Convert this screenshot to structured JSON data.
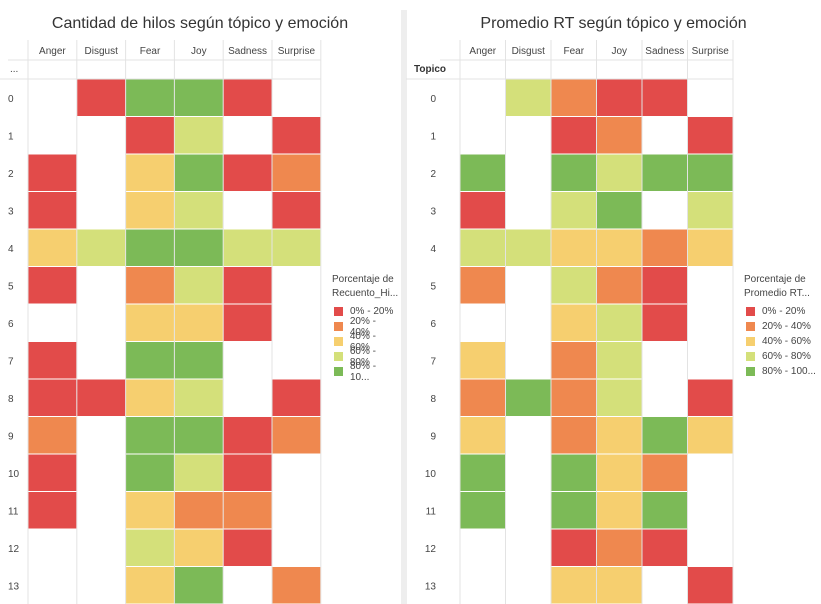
{
  "colors": {
    "0% - 20%": "#e24b4a",
    "20% - 40%": "#ef884f",
    "40% - 60%": "#f6cf6f",
    "60% - 80%": "#d4e07a",
    "80% - 100%": "#7cba57"
  },
  "chart_data": [
    {
      "type": "heatmap",
      "title": "Cantidad de hilos según tópico y emoción",
      "row_header": "...",
      "columns": [
        "Anger",
        "Disgust",
        "Fear",
        "Joy",
        "Sadness",
        "Surprise"
      ],
      "rows": [
        "0",
        "1",
        "2",
        "3",
        "4",
        "5",
        "6",
        "7",
        "8",
        "9",
        "10",
        "11",
        "12",
        "13"
      ],
      "legend_title": "Porcentaje de Recuento_Hi...",
      "legend": [
        "0% - 20%",
        "20% - 40%",
        "40% - 60%",
        "60% - 80%",
        "80% - 10..."
      ],
      "bins": [
        "0% - 20%",
        "20% - 40%",
        "40% - 60%",
        "60% - 80%",
        "80% - 100%"
      ],
      "cells": [
        [
          null,
          0,
          4,
          4,
          0,
          null
        ],
        [
          null,
          null,
          0,
          3,
          null,
          0
        ],
        [
          0,
          null,
          2,
          4,
          0,
          1
        ],
        [
          0,
          null,
          2,
          3,
          null,
          0
        ],
        [
          2,
          3,
          4,
          4,
          3,
          3
        ],
        [
          0,
          null,
          1,
          3,
          0,
          null
        ],
        [
          null,
          null,
          2,
          2,
          0,
          null
        ],
        [
          0,
          null,
          4,
          4,
          null,
          null
        ],
        [
          0,
          0,
          2,
          3,
          null,
          0
        ],
        [
          1,
          null,
          4,
          4,
          0,
          1
        ],
        [
          0,
          null,
          4,
          3,
          0,
          null
        ],
        [
          0,
          null,
          2,
          1,
          1,
          null
        ],
        [
          null,
          null,
          3,
          2,
          0,
          null
        ],
        [
          null,
          null,
          2,
          4,
          null,
          1
        ]
      ]
    },
    {
      "type": "heatmap",
      "title": "Promedio RT según tópico y emoción",
      "row_header": "Topico",
      "columns": [
        "Anger",
        "Disgust",
        "Fear",
        "Joy",
        "Sadness",
        "Surprise"
      ],
      "rows": [
        "0",
        "1",
        "2",
        "3",
        "4",
        "5",
        "6",
        "7",
        "8",
        "9",
        "10",
        "11",
        "12",
        "13"
      ],
      "legend_title": "Porcentaje de Promedio RT...",
      "legend": [
        "0% - 20%",
        "20% - 40%",
        "40% - 60%",
        "60% - 80%",
        "80% - 100..."
      ],
      "bins": [
        "0% - 20%",
        "20% - 40%",
        "40% - 60%",
        "60% - 80%",
        "80% - 100%"
      ],
      "cells": [
        [
          null,
          3,
          1,
          0,
          0,
          null
        ],
        [
          null,
          null,
          0,
          1,
          null,
          0
        ],
        [
          4,
          null,
          4,
          3,
          4,
          4
        ],
        [
          0,
          null,
          3,
          4,
          null,
          3
        ],
        [
          3,
          3,
          2,
          2,
          1,
          2
        ],
        [
          1,
          null,
          3,
          1,
          0,
          null
        ],
        [
          null,
          null,
          2,
          3,
          0,
          null
        ],
        [
          2,
          null,
          1,
          3,
          null,
          null
        ],
        [
          1,
          4,
          1,
          3,
          null,
          0
        ],
        [
          2,
          null,
          1,
          2,
          4,
          2
        ],
        [
          4,
          null,
          4,
          2,
          1,
          null
        ],
        [
          4,
          null,
          4,
          2,
          4,
          null
        ],
        [
          null,
          null,
          0,
          1,
          0,
          null
        ],
        [
          null,
          null,
          2,
          2,
          null,
          0
        ]
      ]
    }
  ]
}
